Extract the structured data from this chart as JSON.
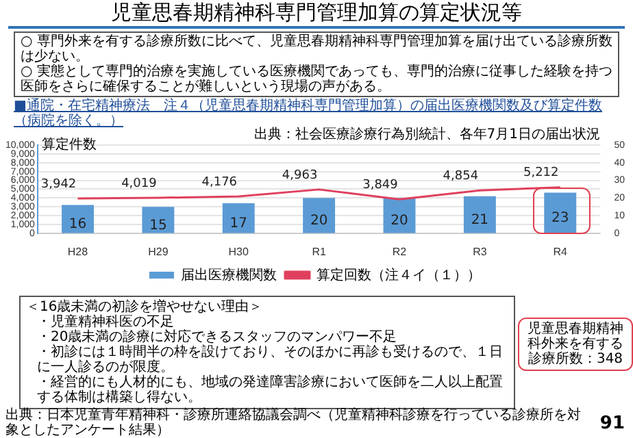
{
  "chart_data": {
    "type": "bar",
    "title": "児童思春期精神科専門管理加算の算定状況等",
    "subtitle": "■通院・在宅精神療法　注４（児童思春期精神科専門管理加算）の届出医療機関数及び算定件数（病院を除く。）",
    "ylabel": "算定件数",
    "categories": [
      "H28",
      "H29",
      "H30",
      "R1",
      "R2",
      "R3",
      "R4"
    ],
    "series": [
      {
        "name": "届出医療機関数",
        "type": "bar",
        "axis": "y2",
        "color": "#5b9bd5",
        "values": [
          16,
          15,
          17,
          20,
          20,
          21,
          23
        ],
        "value_labels": [
          "16",
          "15",
          "17",
          "20",
          "20",
          "21",
          "23"
        ]
      },
      {
        "name": "算定回数（注４イ（１））",
        "type": "line",
        "color": "#e0405e",
        "values": [
          3942,
          4019,
          4176,
          4963,
          3849,
          4854,
          5212
        ],
        "value_labels": [
          "3,942",
          "4,019",
          "4,176",
          "4,963",
          "3,849",
          "4,854",
          "5,212"
        ]
      }
    ],
    "ylim": [
      0,
      10000
    ],
    "yticks": [
      {
        "value": 0,
        "label": "0"
      },
      {
        "value": 1000,
        "label": "1,000"
      },
      {
        "value": 2000,
        "label": "2,000"
      },
      {
        "value": 3000,
        "label": "3,000"
      },
      {
        "value": 4000,
        "label": "4,000"
      },
      {
        "value": 5000,
        "label": "5,000"
      },
      {
        "value": 6000,
        "label": "6,000"
      },
      {
        "value": 7000,
        "label": "7,000"
      },
      {
        "value": 8000,
        "label": "8,000"
      },
      {
        "value": 9000,
        "label": "9,000"
      },
      {
        "value": 10000,
        "label": "10,000"
      }
    ],
    "y2lim": [
      0,
      50
    ],
    "y2ticks": [
      0,
      10,
      20,
      30,
      40,
      50
    ],
    "grid": "y",
    "legend": "bottom",
    "annotations": [
      "○ 専門外来を有する診療所数に比べて、児童思春期精神科専門管理加算を届け出ている診療所数は少ない。",
      "○ 実態として専門的治療を実施している医療機関であっても、専門的治療に従事した経験を持つ医師をさらに確保することが難しいという現場の声がある。",
      "出典：社会医療診療行為別統計、各年7月1日の届出状況",
      "児童思春期精神科外来を有する診療所数：348",
      "＜16歳未満の初診を増やせない理由＞",
      "・児童精神科医の不足",
      "・20歳未満の診療に対応できるスタッフのマンパワー不足",
      "・初診には１時間半の枠を設けており、そのほかに再診も受けるので、１日に一人診るのが限度。",
      "・経営的にも人材的にも、地域の発達障害診療において医師を二人以上配置する体制は構築し得ない。",
      "出典：日本児童青年精神科・診療所連絡協議会調べ（児童精神科診療を行っている診療所を対象としたアンケート結果）",
      "91"
    ]
  }
}
